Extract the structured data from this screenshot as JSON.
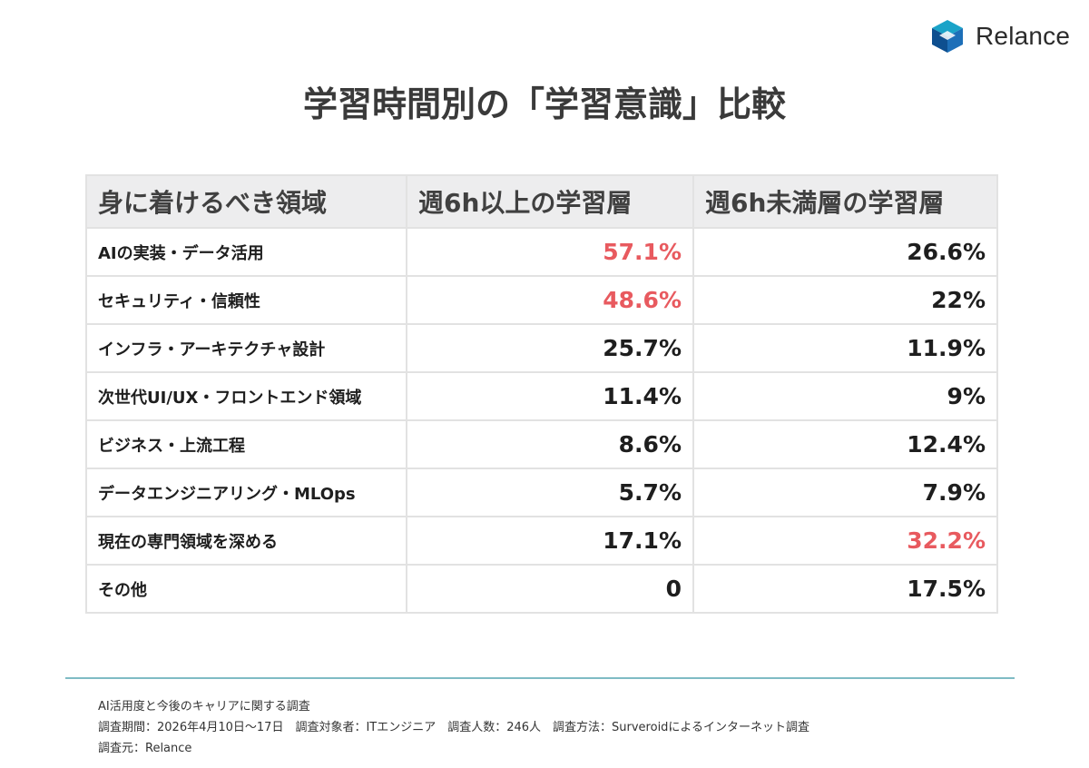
{
  "brand": {
    "name": "Relance",
    "logo_icon": "cube-logo-icon",
    "colors": [
      "#1aa3c8",
      "#0e4f8f",
      "#1d6fb8"
    ]
  },
  "title": "学習時間別の「学習意識」比較",
  "highlight_color": "#e85a5f",
  "chart_data": {
    "type": "table",
    "columns": [
      "身に着けるべき領域",
      "週6h以上の学習層",
      "週6h未満層の学習層"
    ],
    "rows": [
      {
        "label": "AIの実装・データ活用",
        "values": [
          "57.1%",
          "26.6%"
        ],
        "highlight": [
          true,
          false
        ]
      },
      {
        "label": "セキュリティ・信頼性",
        "values": [
          "48.6%",
          "22%"
        ],
        "highlight": [
          true,
          false
        ]
      },
      {
        "label": "インフラ・アーキテクチャ設計",
        "values": [
          "25.7%",
          "11.9%"
        ],
        "highlight": [
          false,
          false
        ]
      },
      {
        "label": "次世代UI/UX・フロントエンド領域",
        "values": [
          "11.4%",
          "9%"
        ],
        "highlight": [
          false,
          false
        ]
      },
      {
        "label": "ビジネス・上流工程",
        "values": [
          "8.6%",
          "12.4%"
        ],
        "highlight": [
          false,
          false
        ]
      },
      {
        "label": "データエンジニアリング・MLOps",
        "values": [
          "5.7%",
          "7.9%"
        ],
        "highlight": [
          false,
          false
        ]
      },
      {
        "label": "現在の専門領域を深める",
        "values": [
          "17.1%",
          "32.2%"
        ],
        "highlight": [
          false,
          true
        ]
      },
      {
        "label": "その他",
        "values": [
          "0",
          "17.5%"
        ],
        "highlight": [
          false,
          false
        ]
      }
    ]
  },
  "footer": {
    "line1": "AI活用度と今後のキャリアに関する調査",
    "line2": "調査期間：2026年4月10日〜17日　調査対象者：ITエンジニア　調査人数：246人　調査方法：Surveroidによるインターネット調査",
    "line3": "調査元：Relance"
  }
}
